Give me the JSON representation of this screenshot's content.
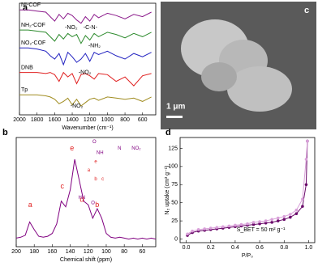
{
  "chart_data": [
    {
      "type": "line",
      "label": "a",
      "x_label": "Wavenumber (cm⁻¹)",
      "x": [
        2000,
        1900,
        1800,
        1700,
        1650,
        1600,
        1550,
        1500,
        1450,
        1400,
        1350,
        1300,
        1250,
        1200,
        1150,
        1100,
        1000,
        900,
        800,
        700,
        600,
        500
      ],
      "xlim": [
        2000,
        450
      ],
      "xticks": [
        2000,
        1800,
        1600,
        1400,
        1200,
        1000,
        800,
        600
      ],
      "ylim": [
        0,
        100
      ],
      "series": [
        {
          "name": "NI-COF",
          "color": "#8b1a8b",
          "values": [
            94,
            94,
            93,
            92,
            88,
            84,
            90,
            86,
            91,
            89,
            85,
            82,
            88,
            84,
            90,
            87,
            91,
            89,
            86,
            90,
            88,
            92
          ]
        },
        {
          "name": "NH₂-COF",
          "color": "#2e8b2e",
          "values": [
            76,
            76,
            75,
            74,
            70,
            66,
            72,
            68,
            73,
            70,
            72,
            64,
            71,
            67,
            73,
            70,
            74,
            72,
            69,
            73,
            70,
            74
          ]
        },
        {
          "name": "NO₂-COF",
          "color": "#2020c0",
          "values": [
            60,
            60,
            59,
            57,
            53,
            50,
            55,
            45,
            56,
            52,
            47,
            50,
            55,
            48,
            56,
            54,
            57,
            53,
            50,
            55,
            52,
            56
          ]
        },
        {
          "name": "DNB",
          "color": "#e02020",
          "values": [
            38,
            38,
            38,
            37,
            38,
            36,
            30,
            38,
            34,
            37,
            28,
            36,
            37,
            35,
            32,
            37,
            36,
            30,
            34,
            26,
            35,
            37
          ]
        },
        {
          "name": "Tp",
          "color": "#a08c20",
          "values": [
            18,
            18,
            18,
            17,
            16,
            14,
            10,
            12,
            15,
            9,
            14,
            8,
            11,
            14,
            15,
            13,
            16,
            15,
            14,
            15,
            12,
            16
          ]
        }
      ],
      "annotations": [
        "-NO₂",
        "-C-N-",
        "-NH₂",
        "-NO₂",
        "-NO₂"
      ]
    },
    {
      "type": "line",
      "label": "b",
      "x_label": "Chemical shift (ppm)",
      "x": [
        200,
        195,
        190,
        185,
        180,
        175,
        170,
        165,
        160,
        155,
        150,
        145,
        140,
        135,
        130,
        125,
        120,
        115,
        110,
        105,
        100,
        95,
        90,
        85,
        80,
        75,
        70,
        65,
        60,
        55,
        50,
        45
      ],
      "xlim": [
        200,
        45
      ],
      "xticks": [
        200,
        180,
        160,
        140,
        120,
        100,
        80,
        60
      ],
      "ylim": [
        0,
        115
      ],
      "series": [
        {
          "color": "#800080",
          "values": [
            9,
            10,
            12,
            26,
            18,
            11,
            10,
            11,
            14,
            24,
            48,
            42,
            60,
            92,
            70,
            48,
            44,
            30,
            40,
            30,
            14,
            10,
            9,
            10,
            9,
            8,
            9,
            8,
            9,
            8,
            9,
            8
          ]
        }
      ],
      "annotations": [
        "a",
        "c",
        "e",
        "d",
        "b"
      ],
      "structure_labels": [
        "O",
        "NH",
        "HN",
        "O",
        "b",
        "c",
        "a",
        "e",
        "N",
        "NO₂"
      ]
    },
    {
      "type": "line",
      "label": "d",
      "markers": true,
      "x_label": "P/P₀",
      "y_label": "N₂ uptake (cm³ g⁻¹)",
      "x": [
        0.01,
        0.05,
        0.1,
        0.15,
        0.2,
        0.25,
        0.3,
        0.35,
        0.4,
        0.45,
        0.5,
        0.55,
        0.6,
        0.65,
        0.7,
        0.75,
        0.8,
        0.85,
        0.9,
        0.95,
        0.98,
        0.99
      ],
      "xlim": [
        -0.05,
        1.05
      ],
      "xticks": [
        {
          "value": 0,
          "label": "0.0"
        },
        0.2,
        0.4,
        0.6,
        0.8,
        {
          "value": 1,
          "label": "1.0"
        }
      ],
      "ylim": [
        -5,
        140
      ],
      "yticks": [
        0,
        25,
        50,
        75,
        100,
        125
      ],
      "series": [
        {
          "color": "#6a0a6a",
          "values": [
            5,
            9,
            11,
            12,
            13,
            14,
            15,
            16,
            17,
            18,
            19,
            20,
            21,
            22,
            23,
            25,
            27,
            30,
            35,
            45,
            75,
            135
          ]
        },
        {
          "color": "#d9a0d9",
          "values": [
            7,
            11,
            13,
            14,
            15,
            16,
            17,
            18,
            19,
            20,
            21,
            23,
            24,
            25,
            27,
            29,
            31,
            34,
            40,
            55,
            110,
            135
          ]
        }
      ],
      "annotations": [
        "S_BET = 50 m² g⁻¹"
      ]
    }
  ],
  "image": {
    "label": "c",
    "scale_bar": "1 μm"
  }
}
